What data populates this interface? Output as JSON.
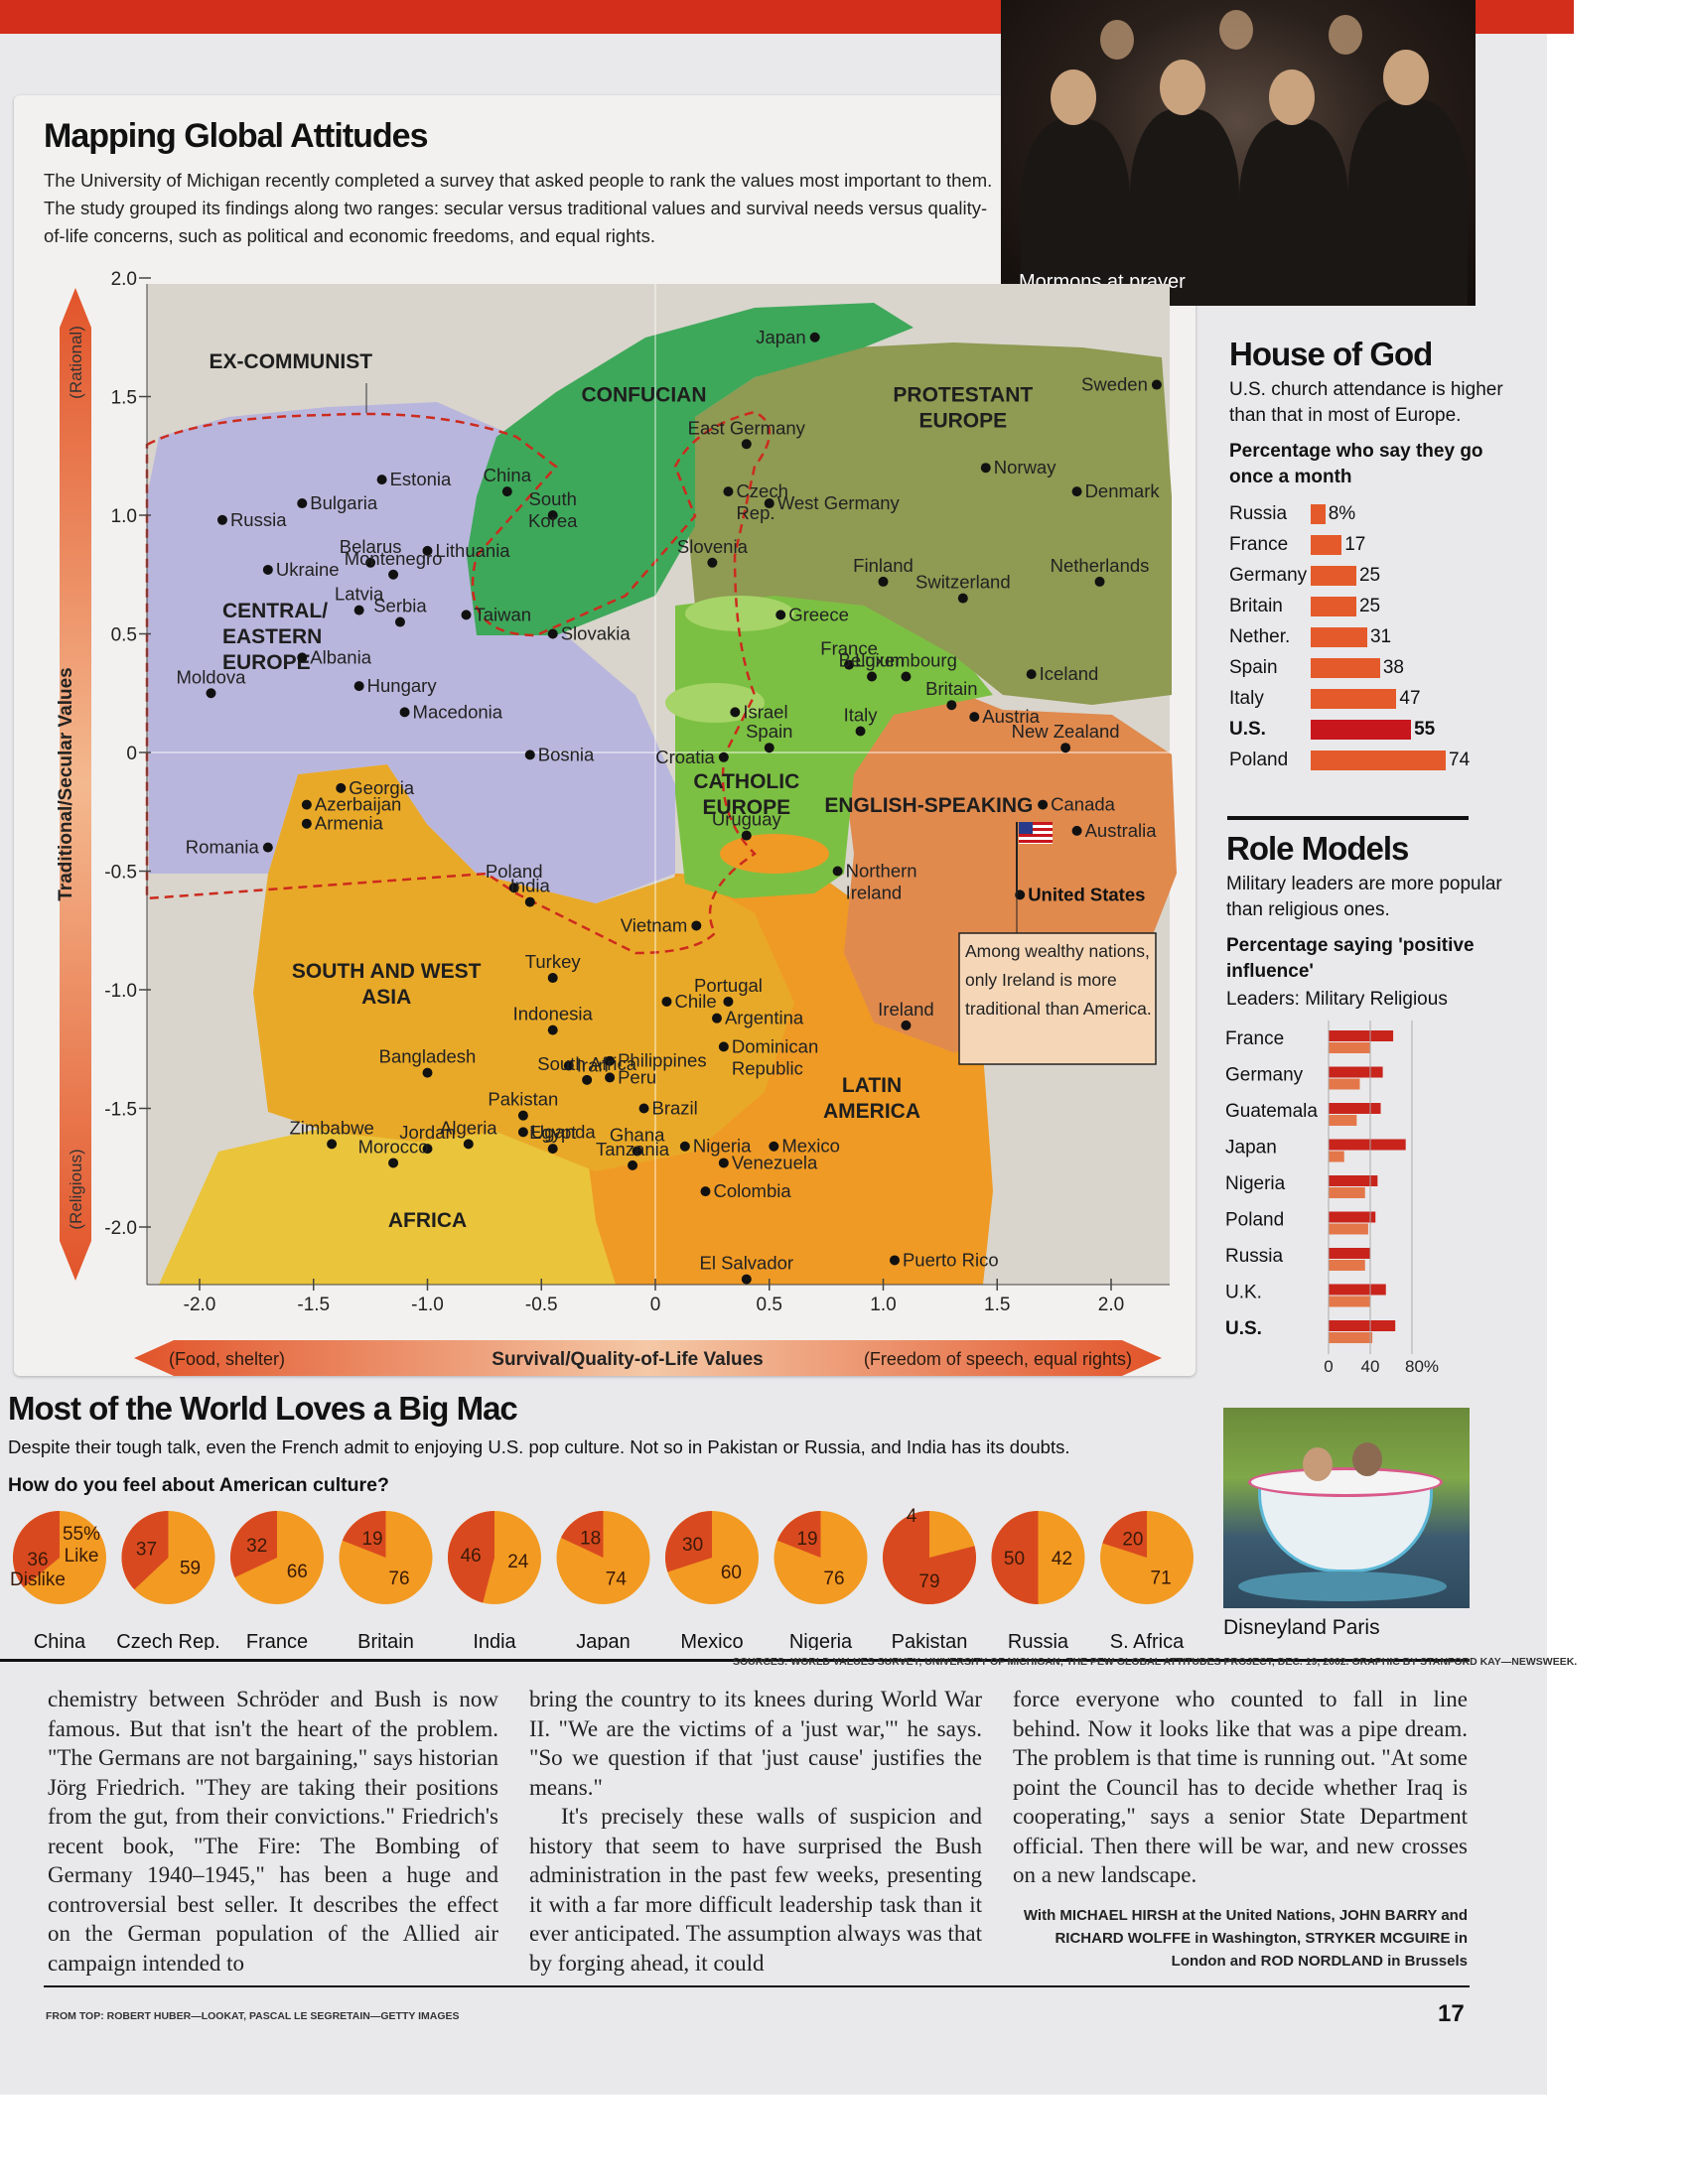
{
  "header": {
    "title": "Mapping Global Attitudes",
    "intro": "The University of Michigan recently completed a survey that asked people to rank the values most important to them. The study grouped its findings along two ranges: secular versus traditional values and survival needs versus quality-of-life concerns, such as political and economic freedoms, and equal rights."
  },
  "photo": {
    "caption": "Mormons at prayer"
  },
  "chart_data": [
    {
      "type": "scatter",
      "title": "Mapping Global Attitudes",
      "xlabel": "Survival/Quality-of-Life Values",
      "xlabel_left": "(Food, shelter)",
      "xlabel_right": "(Freedom of speech, equal rights)",
      "ylabel": "Traditional/Secular Values",
      "ylabel_top": "(Rational)",
      "ylabel_bottom": "(Religious)",
      "xlim": [
        -2.2,
        2.3
      ],
      "ylim": [
        -2.25,
        2.0
      ],
      "xticks": [
        "-2.0",
        "-1.5",
        "-1.0",
        "-0.5",
        "0",
        "0.5",
        "1.0",
        "1.5",
        "2.0"
      ],
      "yticks": [
        "2.0",
        "1.5",
        "1.0",
        "0.5",
        "0",
        "-0.5",
        "-1.0",
        "-1.5",
        "-2.0"
      ],
      "regions": [
        {
          "name": "EX-COMMUNIST",
          "color": "#b9b6dd"
        },
        {
          "name": "CONFUCIAN",
          "color": "#3ea85a"
        },
        {
          "name": "PROTESTANT EUROPE",
          "color": "#8f9a52"
        },
        {
          "name": "CATHOLIC EUROPE",
          "color": "#7cc043"
        },
        {
          "name": "ENGLISH-SPEAKING",
          "color": "#e08a4e"
        },
        {
          "name": "SOUTH AND WEST ASIA",
          "color": "#e9a928"
        },
        {
          "name": "LATIN AMERICA",
          "color": "#ef9a25"
        },
        {
          "name": "AFRICA",
          "color": "#eac43b"
        },
        {
          "name": "CENTRAL/ EASTERN EUROPE",
          "color": "#b9b6dd"
        }
      ],
      "points": [
        {
          "label": "Japan",
          "x": 0.7,
          "y": 1.75
        },
        {
          "label": "Sweden",
          "x": 2.2,
          "y": 1.55
        },
        {
          "label": "East Germany",
          "x": 0.4,
          "y": 1.3
        },
        {
          "label": "Estonia",
          "x": -1.2,
          "y": 1.15
        },
        {
          "label": "China",
          "x": -0.65,
          "y": 1.1
        },
        {
          "label": "Norway",
          "x": 1.45,
          "y": 1.2
        },
        {
          "label": "Denmark",
          "x": 1.85,
          "y": 1.1
        },
        {
          "label": "Czech Rep.",
          "x": 0.32,
          "y": 1.1
        },
        {
          "label": "West Germany",
          "x": 0.5,
          "y": 1.05
        },
        {
          "label": "Bulgaria",
          "x": -1.55,
          "y": 1.05
        },
        {
          "label": "Russia",
          "x": -1.9,
          "y": 0.98
        },
        {
          "label": "South Korea",
          "x": -0.45,
          "y": 1.0
        },
        {
          "label": "Lithuania",
          "x": -1.0,
          "y": 0.85
        },
        {
          "label": "Belarus",
          "x": -1.25,
          "y": 0.8
        },
        {
          "label": "Ukraine",
          "x": -1.7,
          "y": 0.77
        },
        {
          "label": "Montenegro",
          "x": -1.15,
          "y": 0.75
        },
        {
          "label": "Slovenia",
          "x": 0.25,
          "y": 0.8
        },
        {
          "label": "Finland",
          "x": 1.0,
          "y": 0.72
        },
        {
          "label": "Netherlands",
          "x": 1.95,
          "y": 0.72
        },
        {
          "label": "Switzerland",
          "x": 1.35,
          "y": 0.65
        },
        {
          "label": "Latvia",
          "x": -1.3,
          "y": 0.6
        },
        {
          "label": "Serbia",
          "x": -1.12,
          "y": 0.55
        },
        {
          "label": "Taiwan",
          "x": -0.83,
          "y": 0.58
        },
        {
          "label": "Greece",
          "x": 0.55,
          "y": 0.58
        },
        {
          "label": "Slovakia",
          "x": -0.45,
          "y": 0.5
        },
        {
          "label": "Albania",
          "x": -1.55,
          "y": 0.4
        },
        {
          "label": "France",
          "x": 0.85,
          "y": 0.37
        },
        {
          "label": "Belgium",
          "x": 0.95,
          "y": 0.32
        },
        {
          "label": "Luxembourg",
          "x": 1.1,
          "y": 0.32
        },
        {
          "label": "Iceland",
          "x": 1.65,
          "y": 0.33
        },
        {
          "label": "Hungary",
          "x": -1.3,
          "y": 0.28
        },
        {
          "label": "Moldova",
          "x": -1.95,
          "y": 0.25
        },
        {
          "label": "Macedonia",
          "x": -1.1,
          "y": 0.17
        },
        {
          "label": "Israel",
          "x": 0.35,
          "y": 0.17
        },
        {
          "label": "Britain",
          "x": 1.3,
          "y": 0.2
        },
        {
          "label": "Austria",
          "x": 1.4,
          "y": 0.15
        },
        {
          "label": "Spain",
          "x": 0.5,
          "y": 0.02
        },
        {
          "label": "Italy",
          "x": 0.9,
          "y": 0.09
        },
        {
          "label": "Croatia",
          "x": 0.3,
          "y": -0.02
        },
        {
          "label": "Bosnia",
          "x": -0.55,
          "y": -0.01
        },
        {
          "label": "New Zealand",
          "x": 1.8,
          "y": 0.02
        },
        {
          "label": "Georgia",
          "x": -1.38,
          "y": -0.15
        },
        {
          "label": "Azerbaijan",
          "x": -1.53,
          "y": -0.22
        },
        {
          "label": "Armenia",
          "x": -1.53,
          "y": -0.3
        },
        {
          "label": "Canada",
          "x": 1.7,
          "y": -0.22
        },
        {
          "label": "Australia",
          "x": 1.85,
          "y": -0.33
        },
        {
          "label": "Romania",
          "x": -1.7,
          "y": -0.4
        },
        {
          "label": "Uruguay",
          "x": 0.4,
          "y": -0.35
        },
        {
          "label": "Northern Ireland",
          "x": 0.8,
          "y": -0.5
        },
        {
          "label": "Poland",
          "x": -0.62,
          "y": -0.57
        },
        {
          "label": "United States",
          "x": 1.6,
          "y": -0.6
        },
        {
          "label": "India",
          "x": -0.55,
          "y": -0.63
        },
        {
          "label": "Vietnam",
          "x": 0.18,
          "y": -0.73
        },
        {
          "label": "Turkey",
          "x": -0.45,
          "y": -0.95
        },
        {
          "label": "Portugal",
          "x": 0.32,
          "y": -1.05
        },
        {
          "label": "Chile",
          "x": 0.05,
          "y": -1.05
        },
        {
          "label": "Argentina",
          "x": 0.27,
          "y": -1.12
        },
        {
          "label": "Indonesia",
          "x": -0.45,
          "y": -1.17
        },
        {
          "label": "Ireland",
          "x": 1.1,
          "y": -1.15
        },
        {
          "label": "Dominican Republic",
          "x": 0.3,
          "y": -1.24
        },
        {
          "label": "Bangladesh",
          "x": -1.0,
          "y": -1.35
        },
        {
          "label": "Iran",
          "x": -0.38,
          "y": -1.32
        },
        {
          "label": "Philippines",
          "x": -0.2,
          "y": -1.3
        },
        {
          "label": "Peru",
          "x": -0.2,
          "y": -1.37
        },
        {
          "label": "South Africa",
          "x": -0.3,
          "y": -1.38
        },
        {
          "label": "Brazil",
          "x": -0.05,
          "y": -1.5
        },
        {
          "label": "Pakistan",
          "x": -0.58,
          "y": -1.53
        },
        {
          "label": "Uganda",
          "x": -0.58,
          "y": -1.6
        },
        {
          "label": "Jordan",
          "x": -1.0,
          "y": -1.67
        },
        {
          "label": "Zimbabwe",
          "x": -1.42,
          "y": -1.65
        },
        {
          "label": "Morocco",
          "x": -1.15,
          "y": -1.73
        },
        {
          "label": "Algeria",
          "x": -0.82,
          "y": -1.65
        },
        {
          "label": "Egypt",
          "x": -0.45,
          "y": -1.67
        },
        {
          "label": "Ghana",
          "x": -0.08,
          "y": -1.68
        },
        {
          "label": "Tanzania",
          "x": -0.1,
          "y": -1.74
        },
        {
          "label": "Nigeria",
          "x": 0.13,
          "y": -1.66
        },
        {
          "label": "Mexico",
          "x": 0.52,
          "y": -1.66
        },
        {
          "label": "Venezuela",
          "x": 0.3,
          "y": -1.73
        },
        {
          "label": "Colombia",
          "x": 0.22,
          "y": -1.85
        },
        {
          "label": "El Salvador",
          "x": 0.4,
          "y": -2.22
        },
        {
          "label": "Puerto Rico",
          "x": 1.05,
          "y": -2.14
        }
      ],
      "annotation": "Among wealthy nations, only Ireland is more traditional than America."
    },
    {
      "type": "bar",
      "title": "Percentage who say they go once a month",
      "categories": [
        "Russia",
        "France",
        "Germany",
        "Britain",
        "Nether.",
        "Spain",
        "Italy",
        "U.S.",
        "Poland"
      ],
      "values": [
        8,
        17,
        25,
        25,
        31,
        38,
        47,
        55,
        74
      ],
      "value_labels": [
        "8%",
        "17",
        "25",
        "25",
        "31",
        "38",
        "47",
        "55",
        "74"
      ]
    },
    {
      "type": "bar",
      "title": "Percentage saying 'positive influence'",
      "legend": "Leaders: Military  Religious",
      "categories": [
        "France",
        "Germany",
        "Guatemala",
        "Japan",
        "Nigeria",
        "Poland",
        "Russia",
        "U.K.",
        "U.S."
      ],
      "series": [
        {
          "name": "Military",
          "values": [
            62,
            52,
            50,
            74,
            47,
            45,
            40,
            55,
            64
          ]
        },
        {
          "name": "Religious",
          "values": [
            40,
            30,
            27,
            15,
            35,
            38,
            35,
            40,
            42
          ]
        }
      ],
      "xticks": [
        "0",
        "40",
        "80%"
      ],
      "xlim": [
        0,
        80
      ]
    },
    {
      "type": "pie",
      "title": "How do you feel about American culture?",
      "series": [
        {
          "name": "China",
          "like": 55,
          "dislike": 36,
          "like_label": "55% Like",
          "dislike_label": "36 Dislike"
        },
        {
          "name": "Czech Rep.",
          "like": 59,
          "dislike": 37,
          "like_label": "59",
          "dislike_label": "37"
        },
        {
          "name": "France",
          "like": 66,
          "dislike": 32,
          "like_label": "66",
          "dislike_label": "32"
        },
        {
          "name": "Britain",
          "like": 76,
          "dislike": 19,
          "like_label": "76",
          "dislike_label": "19"
        },
        {
          "name": "India",
          "like": 24,
          "dislike": 46,
          "like_label": "24",
          "dislike_label": "46"
        },
        {
          "name": "Japan",
          "like": 74,
          "dislike": 18,
          "like_label": "74",
          "dislike_label": "18"
        },
        {
          "name": "Mexico",
          "like": 60,
          "dislike": 30,
          "like_label": "60",
          "dislike_label": "30"
        },
        {
          "name": "Nigeria",
          "like": 76,
          "dislike": 19,
          "like_label": "76",
          "dislike_label": "19"
        },
        {
          "name": "Pakistan",
          "like": 4,
          "dislike": 79,
          "like_label": "4",
          "dislike_label": "79"
        },
        {
          "name": "Russia",
          "like": 42,
          "dislike": 50,
          "like_label": "42",
          "dislike_label": "50"
        },
        {
          "name": "S. Africa",
          "like": 71,
          "dislike": 20,
          "like_label": "71",
          "dislike_label": "20"
        }
      ]
    }
  ],
  "side": {
    "house_title": "House of God",
    "house_desc": "U.S. church attendance is higher than that in most of Europe.",
    "house_sub": "Percentage who say they go once a month",
    "role_title": "Role Models",
    "role_desc": "Military leaders are more popular than religious ones.",
    "role_sub": "Percentage saying 'positive influence'",
    "role_legend": "Leaders: Military  Religious"
  },
  "bigmac": {
    "title": "Most of the World Loves a Big Mac",
    "desc": "Despite their tough talk, even the French admit to enjoying U.S. pop culture. Not so in Pakistan or Russia, and India has its doubts.",
    "question": "How do you feel about American culture?",
    "photo_caption": "Disneyland Paris",
    "sources": "SOURCES: WORLD VALUES SURVEY, UNIVERSITY OF MICHIGAN; THE PEW GLOBAL ATTITUDES PROJECT, DEC. 19, 2002. GRAPHIC BY STANFORD KAY—NEWSWEEK."
  },
  "article": {
    "col1": "chemistry between Schröder and Bush is now famous. But that isn't the heart of the problem. \"The Germans are not bargaining,\" says historian Jörg Friedrich. \"They are taking their positions from the gut, from their convictions.\" Friedrich's recent book, \"The Fire: The Bombing of Germany 1940–1945,\" has been a huge and controversial best seller. It describes the effect on the German population of the Allied air campaign intended to",
    "col2a": "bring the country to its knees during World War II. \"We are the victims of a 'just war,'\" he says. \"So we question if that 'just cause' justifies the means.\"",
    "col2b": "It's precisely these walls of suspicion and history that seem to have surprised the Bush administration in the past few weeks, presenting it with a far more difficult leadership task than it ever anticipated. The assumption always was that by forging ahead, it could",
    "col3": "force everyone who counted to fall in line behind. Now it looks like that was a pipe dream. The problem is that time is running out. \"At some point the Council has to decide whether Iraq is cooperating,\" says a senior State Department official. Then there will be war, and new crosses on a new landscape.",
    "credit": "With MICHAEL HIRSH at the United Nations, JOHN BARRY and RICHARD WOLFFE in Washington, STRYKER MCGUIRE in London and ROD NORDLAND in Brussels"
  },
  "footer": {
    "photo_credit": "FROM TOP: ROBERT HUBER—LOOKAT, PASCAL LE SEGRETAIN—GETTY IMAGES",
    "page_number": "17"
  },
  "colors": {
    "accent_red": "#d32d1c",
    "bar_orange": "#e45a2a",
    "us_red": "#c8161d",
    "pie_like": "#f29a22",
    "pie_dislike": "#d9491f"
  }
}
